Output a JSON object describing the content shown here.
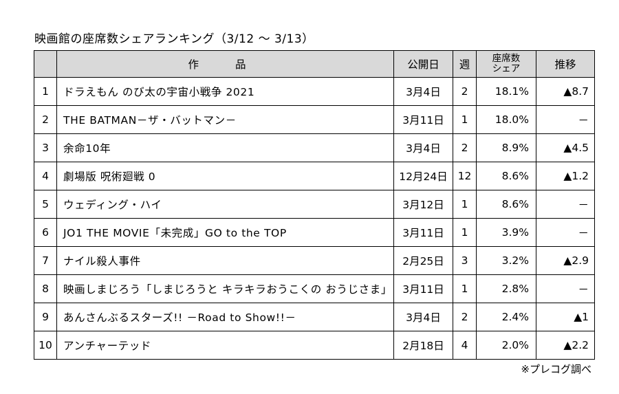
{
  "title": "映画館の座席数シェアランキング（3/12 ～ 3/13）",
  "headers": {
    "rank": "",
    "work": "作 品",
    "release": "公開日",
    "week": "週",
    "share_line1": "座席数",
    "share_line2": "シェア",
    "trend": "推移"
  },
  "rows": [
    {
      "rank": "1",
      "work": "ドラえもん のび太の宇宙小戦争 2021",
      "release": "3月4日",
      "week": "2",
      "share": "18.1%",
      "trend": "▲8.7"
    },
    {
      "rank": "2",
      "work": "THE BATMAN－ザ・バットマン－",
      "release": "3月11日",
      "week": "1",
      "share": "18.0%",
      "trend": "－"
    },
    {
      "rank": "3",
      "work": "余命10年",
      "release": "3月4日",
      "week": "2",
      "share": "8.9%",
      "trend": "▲4.5"
    },
    {
      "rank": "4",
      "work": "劇場版 呪術廻戦 0",
      "release": "12月24日",
      "week": "12",
      "share": "8.6%",
      "trend": "▲1.2"
    },
    {
      "rank": "5",
      "work": "ウェディング・ハイ",
      "release": "3月12日",
      "week": "1",
      "share": "8.6%",
      "trend": "－"
    },
    {
      "rank": "6",
      "work": "JO1 THE MOVIE「未完成」GO to the TOP",
      "release": "3月11日",
      "week": "1",
      "share": "3.9%",
      "trend": "－"
    },
    {
      "rank": "7",
      "work": "ナイル殺人事件",
      "release": "2月25日",
      "week": "3",
      "share": "3.2%",
      "trend": "▲2.9"
    },
    {
      "rank": "8",
      "work": "映画しまじろう「しまじろうと キラキラおうこくの おうじさま」",
      "release": "3月11日",
      "week": "1",
      "share": "2.8%",
      "trend": "－"
    },
    {
      "rank": "9",
      "work": "あんさんぶるスターズ!! －Road to Show!!－",
      "release": "3月4日",
      "week": "2",
      "share": "2.4%",
      "trend": "▲1"
    },
    {
      "rank": "10",
      "work": "アンチャーテッド",
      "release": "2月18日",
      "week": "4",
      "share": "2.0%",
      "trend": "▲2.2"
    }
  ],
  "note": "※プレコグ調べ"
}
